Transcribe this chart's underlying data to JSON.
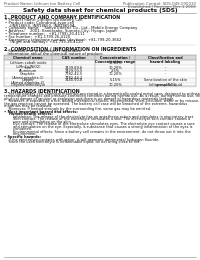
{
  "background_color": "#ffffff",
  "header_left": "Product Name: Lithium Ion Battery Cell",
  "header_right1": "Publication Control: SDS-049-000010",
  "header_right2": "Established / Revision: Dec.1.2016",
  "title": "Safety data sheet for chemical products (SDS)",
  "section1_title": "1. PRODUCT AND COMPANY IDENTIFICATION",
  "section1_lines": [
    "• Product name: Lithium Ion Battery Cell",
    "• Product code: Cylindrical-type cell",
    "    (INR18650, INR18650, INR18650A,",
    "• Company name:    Sanyo Electric Co., Ltd., Mobile Energy Company",
    "• Address:    2001, Kamiosako, Sumoto-City, Hyogo, Japan",
    "• Telephone number:   +81-(799)-20-4111",
    "• Fax number:  +81-1799-26-4120",
    "• Emergency telephone number (daytime): +81-799-20-3662",
    "    (Night and holiday): +81-799-26-4120"
  ],
  "section2_title": "2. COMPOSITION / INFORMATION ON INGREDIENTS",
  "section2_intro": "• Substance or preparation: Preparation",
  "section2_sub": "  Information about the chemical nature of product:",
  "table_col_headers": [
    "Chemical name",
    "CAS number",
    "Concentration /\nConcentration range",
    "Classification and\nhazard labeling"
  ],
  "table_rows": [
    [
      "Lithium cobalt oxide\n(LiMnCo/NiO2)",
      "-",
      "30-60%",
      "-"
    ],
    [
      "Iron",
      "7439-89-6",
      "10-20%",
      "-"
    ],
    [
      "Aluminum",
      "7429-90-5",
      "2-5%",
      "-"
    ],
    [
      "Graphite\n(Aired graphite-1)\n(Airted graphite-2)",
      "7782-42-5\n7782-44-2",
      "10-20%",
      "-"
    ],
    [
      "Copper",
      "7440-50-8",
      "5-15%",
      "Sensitization of the skin\ngroup R4-2"
    ],
    [
      "Organic electrolyte",
      "-",
      "10-20%",
      "Inflammable liquid"
    ]
  ],
  "section3_title": "3. HAZARDS IDENTIFICATION",
  "section3_para1": "    For the battery cell, chemical materials are stored in a hermetically sealed metal case, designed to withstand",
  "section3_para2": "temperature changes and pressure-controlled condition during normal use. As a result, during normal use, there is no",
  "section3_para3": "physical danger of ignition or explosion and there is no danger of hazardous materials leakage.",
  "section3_para4": "    However, if exposed to a fire, added mechanical shocks, decomposed, short-circuited, water or by misuse,",
  "section3_para5": "the gas reaction cannot be operated. The battery cell case will be breached of the extreme, hazardous",
  "section3_para6": "materials may be released.",
  "section3_para7": "    Moreover, if heated strongly by the surrounding fire, some gas may be emitted.",
  "section3_effects_title": "• Most important hazard and effects:",
  "section3_human": "    Human health effects:",
  "section3_human_lines": [
    "        Inhalation: The release of the electrolyte has an anesthesia action and stimulates in respiratory tract.",
    "        Skin contact: The release of the electrolyte stimulates a skin. The electrolyte skin contact causes a",
    "        sore and stimulation on the skin.",
    "        Eye contact: The release of the electrolyte stimulates eyes. The electrolyte eye contact causes a sore",
    "        and stimulation on the eye. Especially, a substance that causes a strong inflammation of the eyes is",
    "        contained.",
    "        Environmental effects: Since a battery cell remains in the environment, do not throw out it into the",
    "        environment."
  ],
  "section3_specific_title": "• Specific hazards:",
  "section3_specific_lines": [
    "    If the electrolyte contacts with water, it will generate detrimental hydrogen fluoride.",
    "    Since the used electrolyte is inflammable liquid, do not bring close to fire."
  ],
  "page_border_color": "#aaaaaa",
  "text_color": "#111111"
}
